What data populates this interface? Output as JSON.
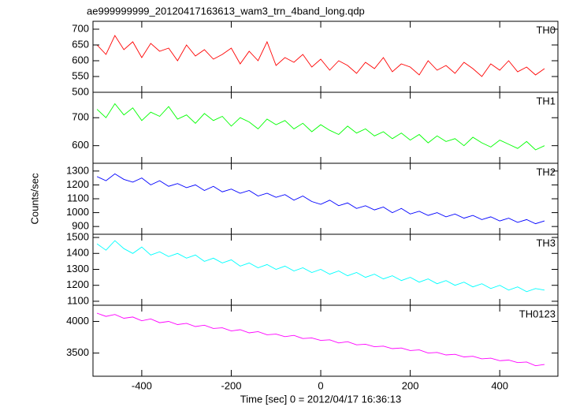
{
  "title": "ae999999999_20120417163613_wam3_trn_4band_long.qdp",
  "xlabel": "Time [sec] 0 = 2012/04/17 16:36:13",
  "ylabel": "Counts/sec",
  "xlim": [
    -509,
    530
  ],
  "xticks": [
    -400,
    -200,
    0,
    200,
    400
  ],
  "chart_data": [
    {
      "type": "line",
      "name": "TH0",
      "color": "#ff0000",
      "ylim": [
        500,
        725
      ],
      "yticks": [
        500,
        550,
        600,
        650,
        700
      ],
      "x": [
        -500,
        -480,
        -460,
        -440,
        -420,
        -400,
        -380,
        -360,
        -340,
        -320,
        -300,
        -280,
        -260,
        -240,
        -220,
        -200,
        -180,
        -160,
        -140,
        -120,
        -100,
        -80,
        -60,
        -40,
        -20,
        0,
        20,
        40,
        60,
        80,
        100,
        120,
        140,
        160,
        180,
        200,
        220,
        240,
        260,
        280,
        300,
        320,
        340,
        360,
        380,
        400,
        420,
        440,
        460,
        480,
        500
      ],
      "values": [
        650,
        620,
        680,
        635,
        660,
        610,
        655,
        630,
        640,
        600,
        650,
        615,
        635,
        605,
        620,
        640,
        590,
        630,
        600,
        660,
        585,
        610,
        595,
        620,
        580,
        605,
        570,
        600,
        585,
        560,
        595,
        575,
        610,
        565,
        590,
        580,
        555,
        600,
        570,
        585,
        560,
        595,
        575,
        550,
        590,
        570,
        600,
        565,
        580,
        555,
        575
      ]
    },
    {
      "type": "line",
      "name": "TH1",
      "color": "#00ff00",
      "ylim": [
        537,
        791
      ],
      "yticks": [
        600,
        700
      ],
      "x": [
        -500,
        -480,
        -460,
        -440,
        -420,
        -400,
        -380,
        -360,
        -340,
        -320,
        -300,
        -280,
        -260,
        -240,
        -220,
        -200,
        -180,
        -160,
        -140,
        -120,
        -100,
        -80,
        -60,
        -40,
        -20,
        0,
        20,
        40,
        60,
        80,
        100,
        120,
        140,
        160,
        180,
        200,
        220,
        240,
        260,
        280,
        300,
        320,
        340,
        360,
        380,
        400,
        420,
        440,
        460,
        480,
        500
      ],
      "values": [
        730,
        700,
        750,
        710,
        735,
        690,
        720,
        705,
        740,
        695,
        710,
        680,
        715,
        690,
        705,
        670,
        700,
        685,
        660,
        695,
        675,
        690,
        660,
        680,
        650,
        675,
        655,
        640,
        670,
        645,
        660,
        635,
        650,
        625,
        645,
        620,
        640,
        610,
        635,
        615,
        625,
        600,
        630,
        610,
        595,
        620,
        605,
        590,
        615,
        585,
        600
      ]
    },
    {
      "type": "line",
      "name": "TH2",
      "color": "#0000ff",
      "ylim": [
        844,
        1356
      ],
      "yticks": [
        900,
        1000,
        1100,
        1200,
        1300
      ],
      "x": [
        -500,
        -480,
        -460,
        -440,
        -420,
        -400,
        -380,
        -360,
        -340,
        -320,
        -300,
        -280,
        -260,
        -240,
        -220,
        -200,
        -180,
        -160,
        -140,
        -120,
        -100,
        -80,
        -60,
        -40,
        -20,
        0,
        20,
        40,
        60,
        80,
        100,
        120,
        140,
        160,
        180,
        200,
        220,
        240,
        260,
        280,
        300,
        320,
        340,
        360,
        380,
        400,
        420,
        440,
        460,
        480,
        500
      ],
      "values": [
        1260,
        1230,
        1280,
        1240,
        1220,
        1250,
        1200,
        1230,
        1190,
        1210,
        1180,
        1200,
        1160,
        1190,
        1150,
        1170,
        1140,
        1160,
        1120,
        1140,
        1110,
        1130,
        1090,
        1120,
        1080,
        1060,
        1090,
        1050,
        1070,
        1030,
        1050,
        1020,
        1040,
        1000,
        1030,
        990,
        1010,
        980,
        1000,
        970,
        990,
        960,
        980,
        950,
        970,
        940,
        960,
        930,
        950,
        920,
        940
      ]
    },
    {
      "type": "line",
      "name": "TH3",
      "color": "#00ffff",
      "ylim": [
        1075,
        1520
      ],
      "yticks": [
        1100,
        1200,
        1300,
        1400,
        1500
      ],
      "x": [
        -500,
        -480,
        -460,
        -440,
        -420,
        -400,
        -380,
        -360,
        -340,
        -320,
        -300,
        -280,
        -260,
        -240,
        -220,
        -200,
        -180,
        -160,
        -140,
        -120,
        -100,
        -80,
        -60,
        -40,
        -20,
        0,
        20,
        40,
        60,
        80,
        100,
        120,
        140,
        160,
        180,
        200,
        220,
        240,
        260,
        280,
        300,
        320,
        340,
        360,
        380,
        400,
        420,
        440,
        460,
        480,
        500
      ],
      "values": [
        1460,
        1420,
        1480,
        1430,
        1400,
        1440,
        1390,
        1410,
        1380,
        1400,
        1370,
        1390,
        1350,
        1370,
        1340,
        1360,
        1320,
        1340,
        1310,
        1330,
        1300,
        1320,
        1290,
        1310,
        1280,
        1300,
        1270,
        1290,
        1260,
        1280,
        1250,
        1270,
        1240,
        1260,
        1230,
        1250,
        1220,
        1240,
        1210,
        1230,
        1200,
        1220,
        1190,
        1210,
        1180,
        1200,
        1170,
        1190,
        1160,
        1180,
        1170
      ]
    },
    {
      "type": "line",
      "name": "TH0123",
      "color": "#ff00ff",
      "ylim": [
        3134,
        4256
      ],
      "yticks": [
        3500,
        4000
      ],
      "x": [
        -500,
        -480,
        -460,
        -440,
        -420,
        -400,
        -380,
        -360,
        -340,
        -320,
        -300,
        -280,
        -260,
        -240,
        -220,
        -200,
        -180,
        -160,
        -140,
        -120,
        -100,
        -80,
        -60,
        -40,
        -20,
        0,
        20,
        40,
        60,
        80,
        100,
        120,
        140,
        160,
        180,
        200,
        220,
        240,
        260,
        280,
        300,
        320,
        340,
        360,
        380,
        400,
        420,
        440,
        460,
        480,
        500
      ],
      "values": [
        4130,
        4080,
        4110,
        4050,
        4070,
        4010,
        4040,
        3980,
        4000,
        3950,
        3970,
        3920,
        3940,
        3890,
        3900,
        3850,
        3870,
        3820,
        3840,
        3790,
        3800,
        3760,
        3780,
        3730,
        3740,
        3700,
        3710,
        3660,
        3680,
        3630,
        3640,
        3600,
        3610,
        3570,
        3580,
        3540,
        3550,
        3500,
        3510,
        3470,
        3480,
        3440,
        3450,
        3410,
        3420,
        3380,
        3390,
        3350,
        3360,
        3300,
        3320
      ]
    }
  ]
}
